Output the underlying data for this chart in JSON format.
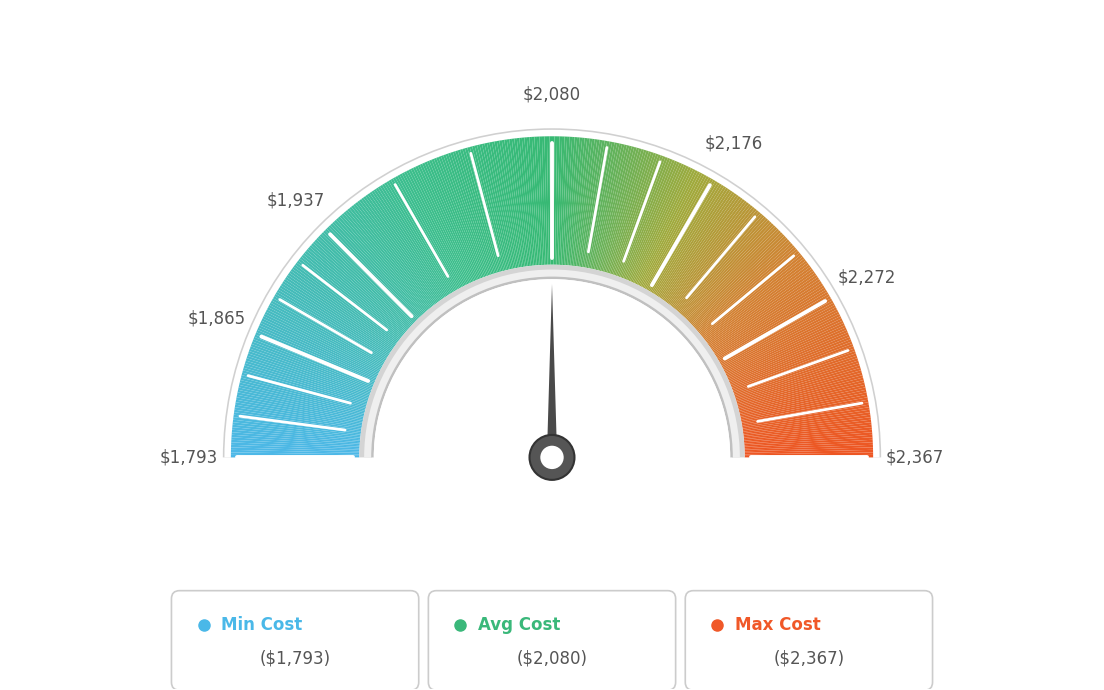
{
  "min_val": 1793,
  "max_val": 2367,
  "avg_val": 2080,
  "tick_labels": [
    "$1,793",
    "$1,865",
    "$1,937",
    "$2,080",
    "$2,176",
    "$2,272",
    "$2,367"
  ],
  "tick_values": [
    1793,
    1865,
    1937,
    2080,
    2176,
    2272,
    2367
  ],
  "legend": [
    {
      "label": "Min Cost",
      "sublabel": "($1,793)",
      "color": "#4ab8e8"
    },
    {
      "label": "Avg Cost",
      "sublabel": "($2,080)",
      "color": "#3ab87a"
    },
    {
      "label": "Max Cost",
      "sublabel": "($2,367)",
      "color": "#f05828"
    }
  ],
  "color_stops": [
    [
      0.0,
      [
        77,
        184,
        232
      ]
    ],
    [
      0.35,
      [
        60,
        190,
        140
      ]
    ],
    [
      0.5,
      [
        55,
        185,
        115
      ]
    ],
    [
      0.65,
      [
        160,
        170,
        60
      ]
    ],
    [
      0.78,
      [
        210,
        130,
        50
      ]
    ],
    [
      1.0,
      [
        238,
        85,
        35
      ]
    ]
  ],
  "bg_color": "#ffffff",
  "outer_r": 1.0,
  "inner_r": 0.6,
  "needle_value": 2080,
  "needle_color": "#4a4a4a",
  "hub_color": "#555555",
  "hub_r": 0.07,
  "ring_outer_color": "#c8c8c8",
  "ring_inner_color": "#e8e8e8"
}
